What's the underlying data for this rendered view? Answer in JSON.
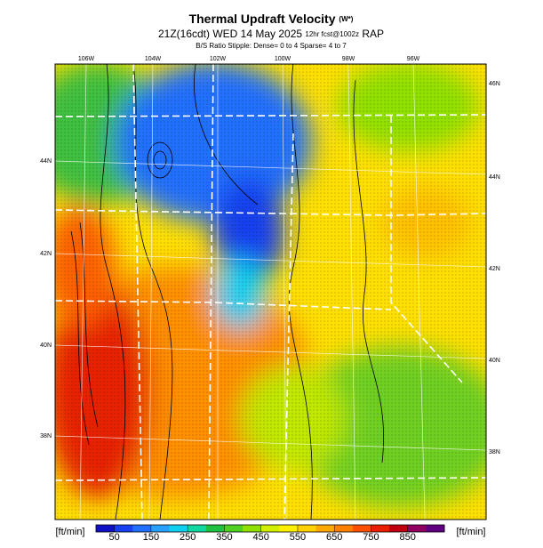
{
  "header": {
    "title": "Thermal Updraft Velocity",
    "title_unit": "(W*)",
    "valid": "21Z(16cdt) WED 14 May 2025",
    "forecast": "12hr fcst@1002z",
    "model": "RAP",
    "stipple": "B/S Ratio Stipple: Dense= 0 to 4 Sparse= 4 to 7"
  },
  "map": {
    "lon_labels": [
      "106W",
      "104W",
      "102W",
      "100W",
      "98W",
      "96W"
    ],
    "lat_labels_left": [
      "44N",
      "42N",
      "40N",
      "38N"
    ],
    "lat_labels_right": [
      "46N",
      "44N",
      "42N",
      "40N",
      "38N"
    ]
  },
  "colorbar": {
    "unit_left": "[ft/min]",
    "unit_right": "[ft/min]",
    "lim": [
      0,
      950
    ],
    "ticks": [
      50,
      150,
      250,
      350,
      450,
      550,
      650,
      750,
      850
    ],
    "colors": [
      "#1010c8",
      "#1840f0",
      "#2070ff",
      "#28a0ff",
      "#10d0f0",
      "#10d8a0",
      "#20c040",
      "#50d020",
      "#90e000",
      "#d0f000",
      "#fff000",
      "#ffd000",
      "#ffa800",
      "#ff8000",
      "#ff5000",
      "#e82000",
      "#c00010",
      "#900060",
      "#600080"
    ]
  }
}
